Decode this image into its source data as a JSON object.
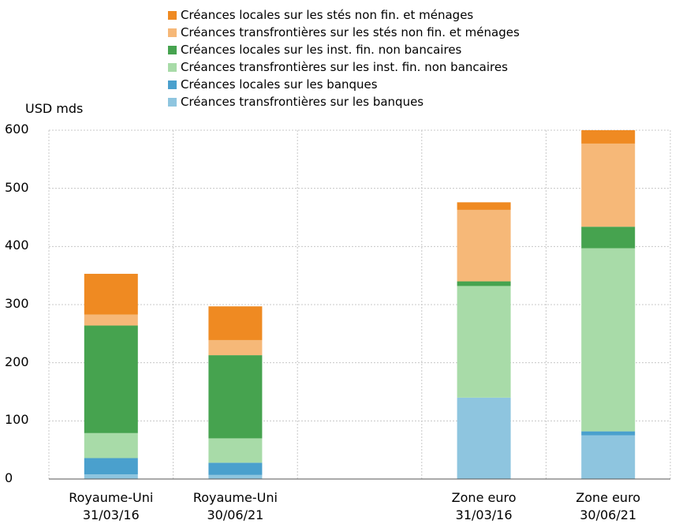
{
  "chart_data": {
    "type": "bar",
    "stacked": true,
    "unit_label": "USD mds",
    "ylim": [
      0,
      600
    ],
    "yticks": [
      "0",
      "100",
      "200",
      "300",
      "400",
      "500",
      "600"
    ],
    "grid": true,
    "legend_position": "top",
    "categories": [
      {
        "line1": "Royaume-Uni",
        "line2": "31/03/16"
      },
      {
        "line1": "Royaume-Uni",
        "line2": "30/06/21"
      },
      {
        "line1": "",
        "line2": ""
      },
      {
        "line1": "Zone euro",
        "line2": "31/03/16"
      },
      {
        "line1": "Zone euro",
        "line2": "30/06/21"
      }
    ],
    "series": [
      {
        "name": "Créances transfrontières sur les banques",
        "color": "#8ec5df",
        "values": [
          8,
          7,
          null,
          140,
          75
        ]
      },
      {
        "name": "Créances locales sur les banques",
        "color": "#4aa0cd",
        "values": [
          28,
          21,
          null,
          0,
          7
        ]
      },
      {
        "name": "Créances transfrontières sur les inst. fin. non bancaires",
        "color": "#a8dba8",
        "values": [
          43,
          42,
          null,
          192,
          315
        ]
      },
      {
        "name": "Créances locales sur les inst. fin. non bancaires",
        "color": "#46a34f",
        "values": [
          185,
          143,
          null,
          8,
          37
        ]
      },
      {
        "name": "Créances transfrontières sur les stés non fin. et ménages",
        "color": "#f6b878",
        "values": [
          19,
          26,
          null,
          123,
          143
        ]
      },
      {
        "name": "Créances locales sur les stés non fin. et ménages",
        "color": "#ef8a22",
        "values": [
          70,
          58,
          null,
          13,
          23
        ]
      }
    ]
  }
}
